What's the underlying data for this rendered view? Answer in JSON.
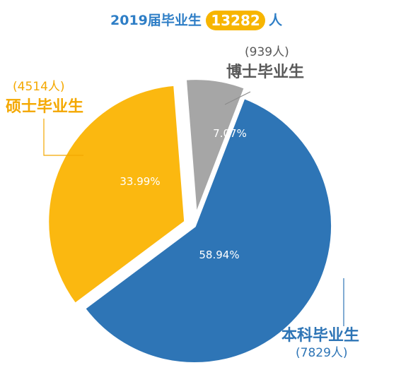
{
  "header": {
    "prefix": "2019届毕业生",
    "total": "13282",
    "suffix": "人"
  },
  "colors": {
    "title": "#2e7ec6",
    "badge": "#f7b500"
  },
  "chart_data": {
    "type": "pie",
    "title": "2019届毕业生 13282 人",
    "slices": [
      {
        "label": "本科毕业生",
        "count": "(7829人)",
        "value": 58.94,
        "pct_label": "58.94%",
        "color": "#2e75b6",
        "text_color": "#2e75b6",
        "exploded": false
      },
      {
        "label": "硕士毕业生",
        "count": "(4514人)",
        "value": 33.99,
        "pct_label": "33.99%",
        "color": "#fbb810",
        "text_color": "#f4a800",
        "exploded": true
      },
      {
        "label": "博士毕业生",
        "count": "(939人)",
        "value": 7.07,
        "pct_label": "7.07%",
        "color": "#a6a6a6",
        "text_color": "#595959",
        "exploded": true
      }
    ]
  }
}
